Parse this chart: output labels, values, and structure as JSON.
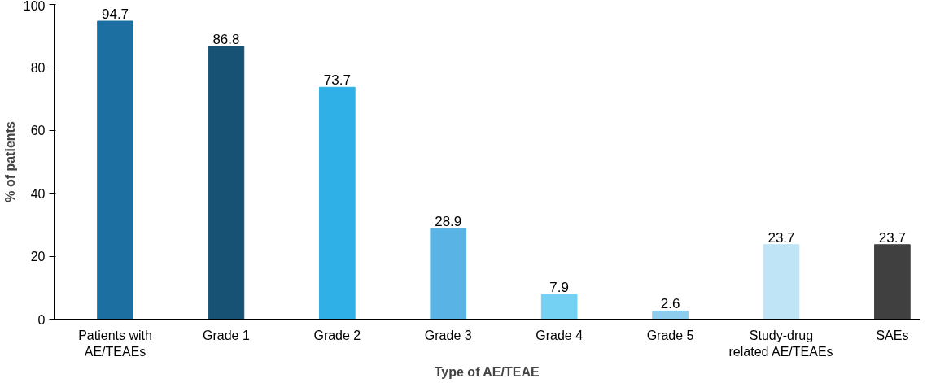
{
  "chart_data": {
    "type": "bar",
    "xlabel": "Type of AE/TEAE",
    "ylabel": "% of patients",
    "categories": [
      "Patients with AE/TEAEs",
      "Grade 1",
      "Grade 2",
      "Grade 3",
      "Grade 4",
      "Grade 5",
      "Study-drug related AE/TEAEs",
      "SAEs"
    ],
    "values": [
      94.7,
      86.8,
      73.7,
      28.9,
      7.9,
      2.6,
      23.7,
      23.7
    ],
    "colors": [
      "#1b6fa1",
      "#175275",
      "#2fb0e6",
      "#59b3e4",
      "#74d1f4",
      "#8ecdee",
      "#bee4f6",
      "#404040"
    ],
    "ylim": [
      0,
      100
    ],
    "yticks": [
      0,
      20,
      40,
      60,
      80,
      100
    ],
    "data_labels": true,
    "grid": false
  }
}
